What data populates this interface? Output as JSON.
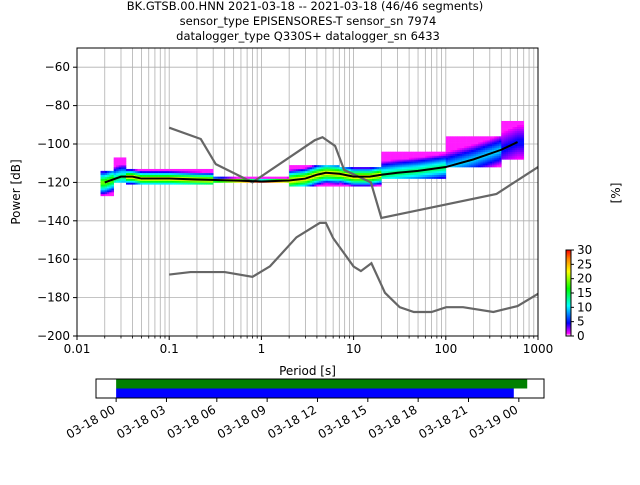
{
  "title": {
    "line1": "BK.GTSB.00.HNN   2021-03-18 -- 2021-03-18  (46/46 segments)",
    "line2": "sensor_type EPISENSORES-T sensor_sn 7974",
    "line3": "datalogger_type Q330S+ datalogger_sn 6433"
  },
  "chart_data": [
    {
      "type": "heatmap",
      "subtype": "probabilistic-power-spectral-density",
      "xlabel": "Period [s]",
      "ylabel": "Power [dB]",
      "xscale": "log",
      "xlim": [
        0.01,
        1000
      ],
      "ylim": [
        -200,
        -50
      ],
      "xticks": [
        0.01,
        0.1,
        1,
        10,
        100,
        1000
      ],
      "xtick_labels": [
        "0.01",
        "0.1",
        "1",
        "10",
        "100",
        "1000"
      ],
      "yticks": [
        -200,
        -180,
        -160,
        -140,
        -120,
        -100,
        -80,
        -60
      ],
      "yticks_labels": [
        "−200",
        "−180",
        "−160",
        "−140",
        "−120",
        "−100",
        "−80",
        "−60"
      ],
      "grid": true,
      "colorbar": {
        "label": "[%]",
        "min": 0,
        "max": 30,
        "ticks": [
          "0",
          "5",
          "10",
          "15",
          "20",
          "25",
          "30"
        ],
        "colormap": "pqlx"
      },
      "mode_curve": {
        "period": [
          0.02,
          0.03,
          0.04,
          0.05,
          0.1,
          0.2,
          0.5,
          1,
          2,
          3,
          4,
          5,
          7,
          10,
          15,
          20,
          30,
          50,
          100,
          200,
          400,
          600
        ],
        "power": [
          -120,
          -117,
          -117,
          -118,
          -118,
          -118.5,
          -119,
          -119.5,
          -119,
          -118,
          -116,
          -115,
          -115.5,
          -117,
          -117,
          -116,
          -115,
          -114,
          -112,
          -108,
          -103,
          -99
        ]
      },
      "nhnm": {
        "period": [
          0.1,
          0.22,
          0.32,
          0.8,
          3.8,
          4.6,
          6.3,
          7.9,
          15.4,
          20,
          354.8,
          1000
        ],
        "power": [
          -91.5,
          -97.4,
          -110.5,
          -120,
          -98,
          -96.5,
          -101,
          -113.5,
          -120,
          -138.5,
          -126,
          -112
        ]
      },
      "nlnm": {
        "period": [
          0.1,
          0.17,
          0.4,
          0.8,
          1.24,
          2.4,
          4.3,
          5,
          6,
          10,
          12,
          15.6,
          21.9,
          31.6,
          45,
          70,
          101,
          154,
          328,
          600,
          1000
        ],
        "power": [
          -168,
          -166.7,
          -166.7,
          -169.2,
          -163.7,
          -148.6,
          -141.1,
          -141.1,
          -149,
          -163.8,
          -166.2,
          -162.1,
          -177.5,
          -185,
          -187.5,
          -187.5,
          -185,
          -185,
          -187.5,
          -184.4,
          -178
        ]
      },
      "density_bands": [
        {
          "period": [
            0.018,
            0.025
          ],
          "power": [
            -127,
            -114
          ],
          "peak_percent": 20
        },
        {
          "period": [
            0.025,
            0.034
          ],
          "power": [
            -120,
            -107
          ],
          "peak_percent": 15
        },
        {
          "period": [
            0.034,
            0.3
          ],
          "power": [
            -121,
            -113
          ],
          "peak_percent": 25
        },
        {
          "period": [
            0.3,
            2
          ],
          "power": [
            -120,
            -117
          ],
          "peak_percent": 30
        },
        {
          "period": [
            2,
            7
          ],
          "power": [
            -122,
            -111
          ],
          "peak_percent": 25
        },
        {
          "period": [
            7,
            20
          ],
          "power": [
            -122,
            -112
          ],
          "peak_percent": 25
        },
        {
          "period": [
            20,
            100
          ],
          "power": [
            -118,
            -104
          ],
          "peak_percent": 15
        },
        {
          "period": [
            100,
            400
          ],
          "power": [
            -112,
            -96
          ],
          "peak_percent": 10
        },
        {
          "period": [
            400,
            700
          ],
          "power": [
            -108,
            -88
          ],
          "peak_percent": 5
        }
      ]
    },
    {
      "type": "timeline",
      "xtick_labels": [
        "03-18 00",
        "03-18 03",
        "03-18 06",
        "03-18 09",
        "03-18 12",
        "03-18 15",
        "03-18 18",
        "03-18 21",
        "03-19 00"
      ],
      "xlim_hours": [
        -1.2,
        25.5
      ],
      "series": [
        {
          "color": "#008000",
          "start_hour": 0,
          "end_hour": 24.5
        },
        {
          "color": "#0000ff",
          "start_hour": 0,
          "end_hour": 23.7
        }
      ]
    }
  ]
}
